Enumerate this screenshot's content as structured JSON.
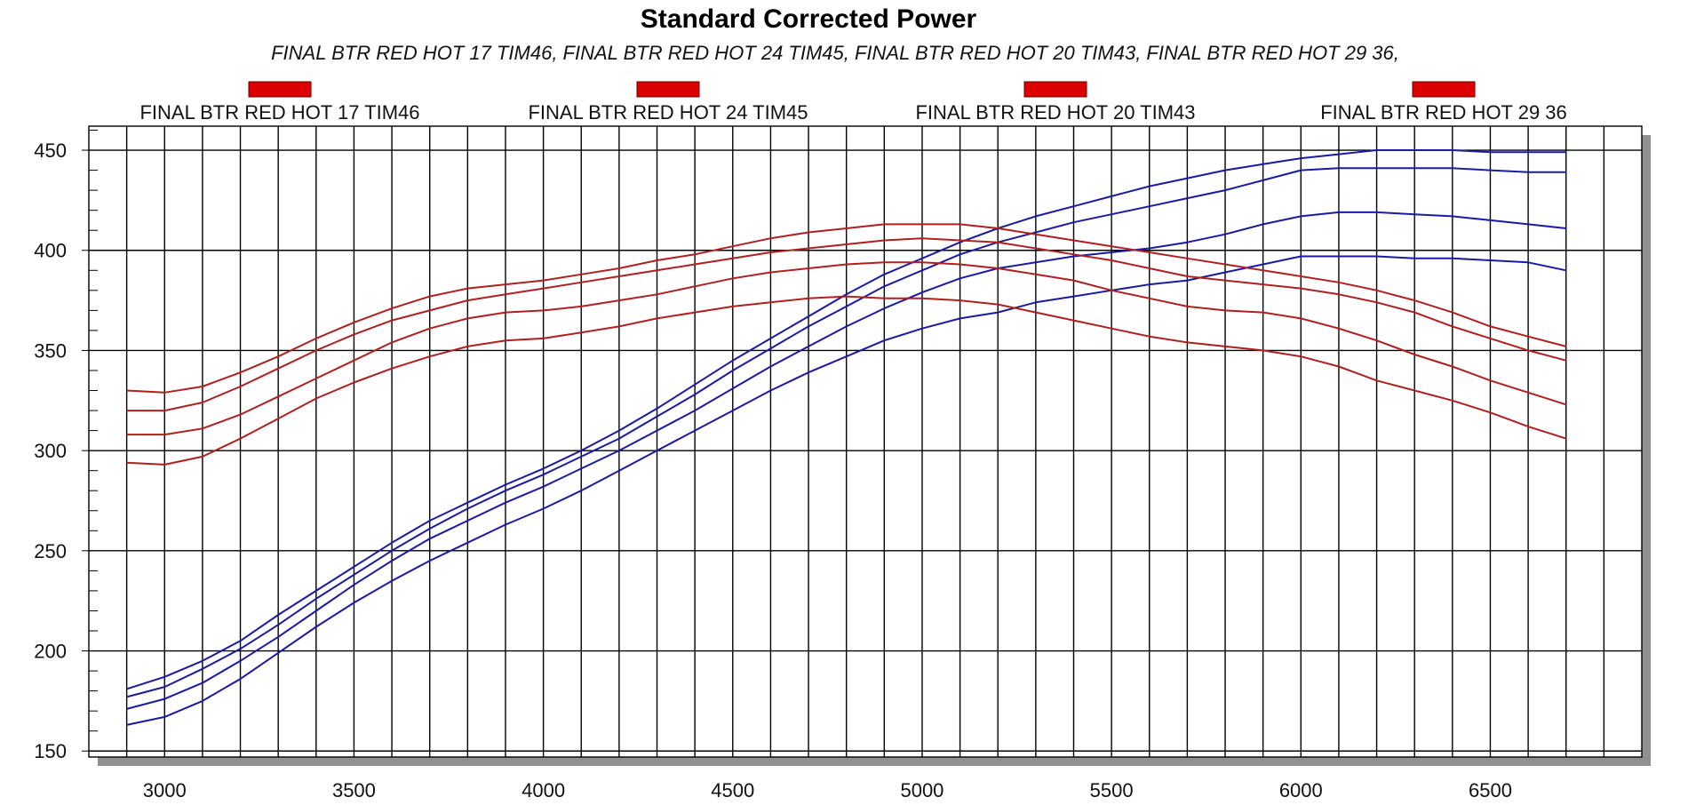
{
  "chart_data": {
    "type": "line",
    "title": "Standard Corrected Power",
    "subtitle": "FINAL BTR RED HOT 17 TIM46, FINAL BTR RED HOT 24 TIM45, FINAL BTR RED HOT 20 TIM43, FINAL BTR RED HOT 29 36,",
    "xlabel": "",
    "ylabel": "",
    "xlim": [
      2800,
      6900
    ],
    "ylim": [
      147,
      462
    ],
    "x_ticks": [
      3000,
      3500,
      4000,
      4500,
      5000,
      5500,
      6000,
      6500
    ],
    "y_ticks": [
      150,
      200,
      250,
      300,
      350,
      400,
      450
    ],
    "grid": true,
    "legend_position": "top",
    "legend": [
      {
        "name": "FINAL BTR RED HOT 17 TIM46",
        "color": "#dd0000"
      },
      {
        "name": "FINAL BTR RED HOT 24 TIM45",
        "color": "#dd0000"
      },
      {
        "name": "FINAL BTR RED HOT 20 TIM43",
        "color": "#dd0000"
      },
      {
        "name": "FINAL BTR RED HOT 29 36",
        "color": "#dd0000"
      }
    ],
    "x": [
      2900,
      3000,
      3100,
      3200,
      3300,
      3400,
      3500,
      3600,
      3700,
      3800,
      3900,
      4000,
      4100,
      4200,
      4300,
      4400,
      4500,
      4600,
      4700,
      4800,
      4900,
      5000,
      5100,
      5200,
      5300,
      5400,
      5500,
      5600,
      5700,
      5800,
      5900,
      6000,
      6100,
      6200,
      6300,
      6400,
      6500,
      6600,
      6700
    ],
    "series": [
      {
        "color": "#1a1aa6",
        "values": [
          181,
          187,
          195,
          205,
          218,
          230,
          242,
          254,
          265,
          274,
          283,
          291,
          300,
          310,
          321,
          333,
          345,
          356,
          367,
          378,
          388,
          396,
          404,
          411,
          417,
          422,
          427,
          432,
          436,
          440,
          443,
          446,
          448,
          450,
          450,
          450,
          449,
          449,
          449
        ]
      },
      {
        "color": "#1a1aa6",
        "values": [
          177,
          182,
          191,
          201,
          213,
          226,
          238,
          250,
          261,
          271,
          280,
          288,
          297,
          306,
          317,
          328,
          340,
          351,
          362,
          372,
          382,
          390,
          398,
          404,
          409,
          414,
          418,
          422,
          426,
          430,
          435,
          440,
          441,
          441,
          441,
          441,
          440,
          439,
          439
        ]
      },
      {
        "color": "#1a1aa6",
        "values": [
          171,
          176,
          184,
          195,
          207,
          220,
          233,
          245,
          256,
          265,
          274,
          282,
          291,
          300,
          310,
          320,
          331,
          342,
          352,
          362,
          371,
          379,
          386,
          391,
          394,
          397,
          399,
          401,
          404,
          408,
          413,
          417,
          419,
          419,
          418,
          417,
          415,
          413,
          411
        ]
      },
      {
        "color": "#1a1aa6",
        "values": [
          163,
          167,
          175,
          186,
          199,
          212,
          224,
          235,
          245,
          254,
          263,
          271,
          280,
          290,
          300,
          310,
          320,
          330,
          339,
          347,
          355,
          361,
          366,
          369,
          374,
          377,
          380,
          383,
          385,
          389,
          393,
          397,
          397,
          397,
          396,
          396,
          395,
          394,
          390
        ]
      },
      {
        "color": "#b02020",
        "values": [
          330,
          329,
          332,
          339,
          347,
          356,
          364,
          371,
          377,
          381,
          383,
          385,
          388,
          391,
          395,
          398,
          402,
          406,
          409,
          411,
          413,
          413,
          413,
          411,
          408,
          405,
          402,
          399,
          396,
          393,
          390,
          387,
          384,
          380,
          375,
          369,
          362,
          357,
          352
        ]
      },
      {
        "color": "#b02020",
        "values": [
          320,
          320,
          324,
          332,
          341,
          350,
          358,
          365,
          370,
          375,
          378,
          381,
          384,
          387,
          390,
          393,
          396,
          399,
          401,
          403,
          405,
          406,
          405,
          404,
          401,
          398,
          395,
          391,
          387,
          385,
          383,
          381,
          378,
          374,
          369,
          362,
          356,
          350,
          345
        ]
      },
      {
        "color": "#b02020",
        "values": [
          308,
          308,
          311,
          318,
          327,
          336,
          345,
          354,
          361,
          366,
          369,
          370,
          372,
          375,
          378,
          382,
          386,
          389,
          391,
          393,
          394,
          394,
          393,
          391,
          388,
          385,
          380,
          376,
          372,
          370,
          369,
          366,
          361,
          355,
          348,
          342,
          335,
          329,
          323
        ]
      },
      {
        "color": "#b02020",
        "values": [
          294,
          293,
          297,
          306,
          316,
          326,
          334,
          341,
          347,
          352,
          355,
          356,
          359,
          362,
          366,
          369,
          372,
          374,
          376,
          377,
          376,
          376,
          375,
          373,
          369,
          365,
          361,
          357,
          354,
          352,
          350,
          347,
          342,
          335,
          330,
          325,
          319,
          312,
          306
        ]
      }
    ]
  }
}
